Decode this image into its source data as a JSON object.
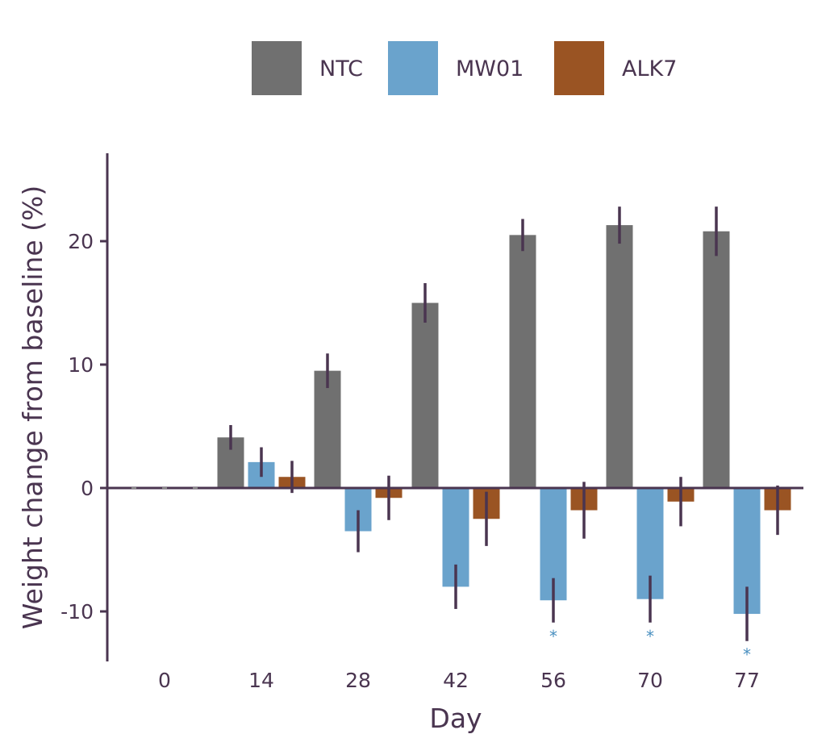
{
  "chart_data": {
    "type": "bar",
    "categories": [
      "0",
      "14",
      "28",
      "42",
      "56",
      "70",
      "77"
    ],
    "series": [
      {
        "name": "NTC",
        "color": "#707070",
        "values": [
          0,
          4.1,
          9.5,
          15.0,
          20.5,
          21.3,
          20.8
        ],
        "errors": [
          0,
          1.0,
          1.4,
          1.6,
          1.3,
          1.5,
          2.0
        ]
      },
      {
        "name": "MW01",
        "color": "#6aa3cc",
        "values": [
          0,
          2.1,
          -3.5,
          -8.0,
          -9.1,
          -9.0,
          -10.2
        ],
        "errors": [
          0,
          1.2,
          1.7,
          1.8,
          1.8,
          1.9,
          2.2
        ]
      },
      {
        "name": "ALK7",
        "color": "#9a5423",
        "values": [
          0,
          0.9,
          -0.8,
          -2.5,
          -1.8,
          -1.1,
          -1.8
        ],
        "errors": [
          0,
          1.3,
          1.8,
          2.2,
          2.3,
          2.0,
          2.0
        ]
      }
    ],
    "significance": [
      {
        "category": "56",
        "series": "MW01",
        "label": "*"
      },
      {
        "category": "70",
        "series": "MW01",
        "label": "*"
      },
      {
        "category": "77",
        "series": "MW01",
        "label": "*"
      }
    ],
    "yticks": [
      "20",
      "10",
      "0",
      "-10"
    ],
    "ytick_values": [
      20,
      10,
      0,
      -10
    ],
    "ylim": [
      -14,
      27
    ],
    "xlabel": "Day",
    "ylabel": "Weight change from baseline (%)",
    "legend_position": "top",
    "axis_color": "#4a3550",
    "significance_color": "#4a90c0",
    "grid": false
  }
}
